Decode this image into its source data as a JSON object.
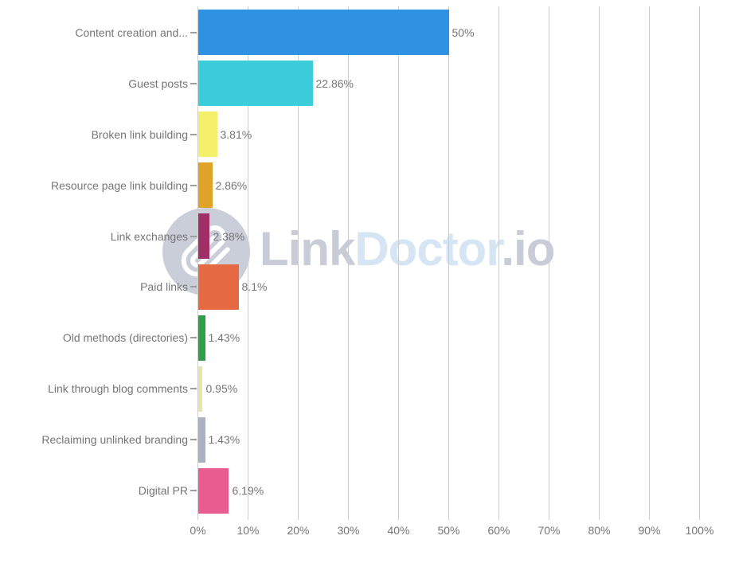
{
  "watermark": {
    "text_link": "Link",
    "text_doctor": "Doctor",
    "text_io": ".io",
    "gray_color": "#C7CCD7",
    "blue_color": "#D6E5F4",
    "circle_color": "#C9CED9",
    "paperclip_color": "#FFFFFF"
  },
  "chart_data": {
    "type": "bar",
    "orientation": "horizontal",
    "title": "",
    "xlabel": "",
    "ylabel": "",
    "legend": "none",
    "grid": true,
    "xlim": [
      0,
      100
    ],
    "x_ticks": [
      "0%",
      "10%",
      "20%",
      "30%",
      "40%",
      "50%",
      "60%",
      "70%",
      "80%",
      "90%",
      "100%"
    ],
    "categories": [
      "Content creation and...",
      "Guest posts",
      "Broken link building",
      "Resource page link building",
      "Link exchanges",
      "Paid links",
      "Old methods (directories)",
      "Link through blog comments",
      "Reclaiming unlinked branding",
      "Digital PR"
    ],
    "values": [
      50,
      22.86,
      3.81,
      2.86,
      2.38,
      8.1,
      1.43,
      0.95,
      1.43,
      6.19
    ],
    "value_labels": [
      "50%",
      "22.86%",
      "3.81%",
      "2.86%",
      "2.38%",
      "8.1%",
      "1.43%",
      "0.95%",
      "1.43%",
      "6.19%"
    ],
    "bar_colors": [
      "#2F91E2",
      "#3BCDD9",
      "#F4F06B",
      "#DFA32A",
      "#A02F66",
      "#E66A41",
      "#2F9E49",
      "#E9E4A9",
      "#A9B1C2",
      "#E95C90"
    ],
    "gridline_color": "#CDCDCD",
    "axis_tick_color": "#9E9E9E",
    "label_color": "#757575"
  }
}
